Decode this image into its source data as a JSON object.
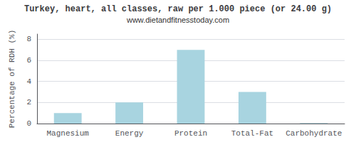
{
  "chart_data": {
    "type": "bar",
    "title": "Turkey, heart, all classes, raw per 1.000 piece (or 24.00 g)",
    "subtitle": "www.dietandfitnesstoday.com",
    "ylabel": "Percentage of RDH (%)",
    "categories": [
      "Magnesium",
      "Energy",
      "Protein",
      "Total-Fat",
      "Carbohydrate"
    ],
    "values": [
      1.0,
      2.0,
      7.0,
      3.0,
      0.05
    ],
    "color": "#a8d4e0",
    "ylim": [
      0,
      8.5
    ],
    "yticks": [
      0,
      2,
      4,
      6,
      8
    ],
    "grid": true
  }
}
